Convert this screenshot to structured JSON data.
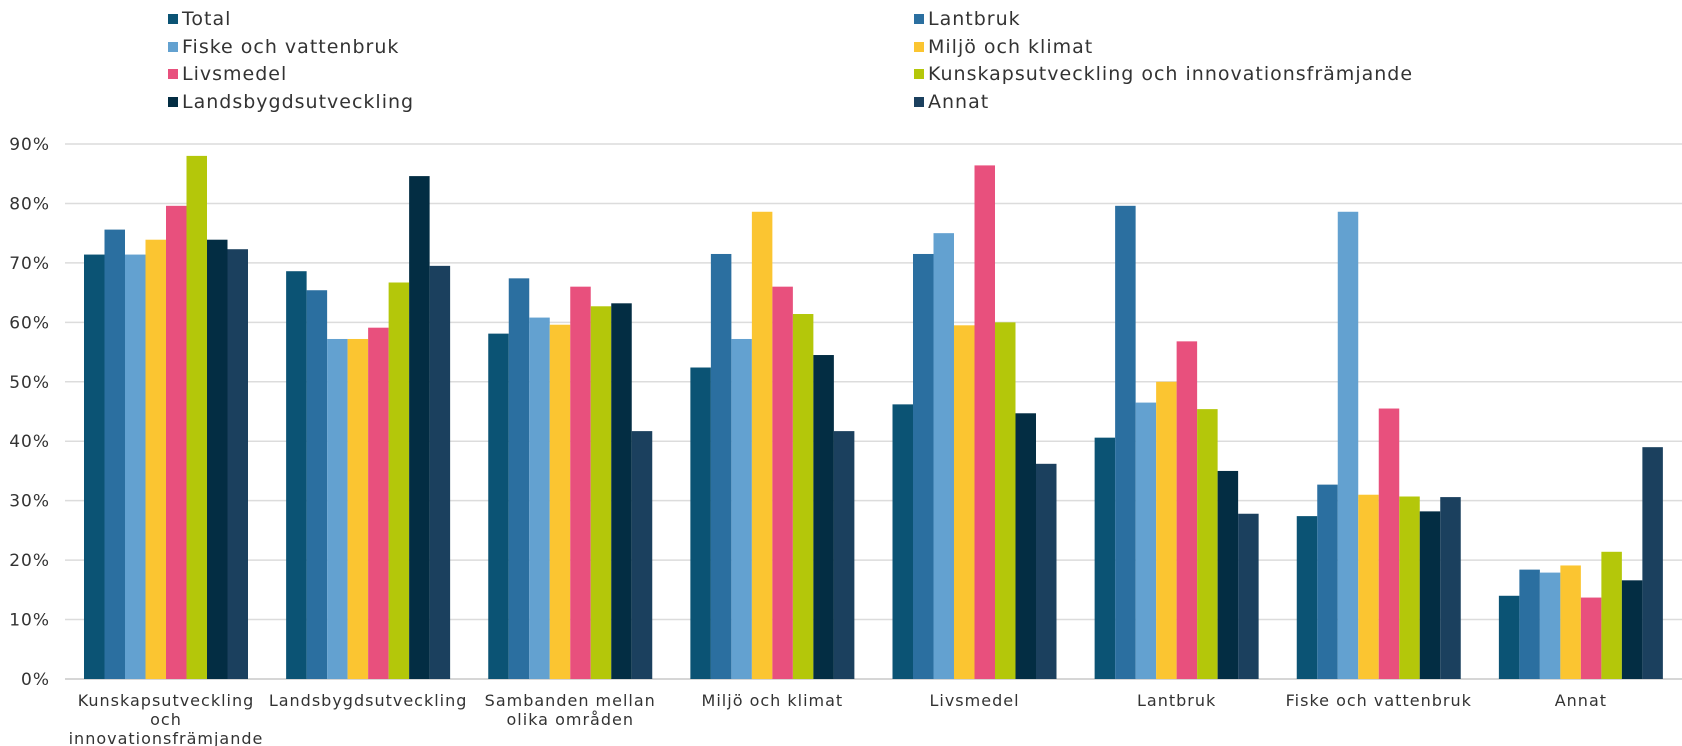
{
  "chart_data": {
    "type": "bar",
    "title": "",
    "xlabel": "",
    "ylabel": "",
    "ylim": [
      0,
      90
    ],
    "y_ticks": [
      "0%",
      "10%",
      "20%",
      "30%",
      "40%",
      "50%",
      "60%",
      "70%",
      "80%",
      "90%"
    ],
    "grid": true,
    "legend_position": "top",
    "categories": [
      [
        "Kunskapsutveckling",
        "och",
        "innovationsfrämjande"
      ],
      [
        "Landsbygdsutveckling"
      ],
      [
        "Sambanden mellan",
        "olika områden"
      ],
      [
        "Miljö och klimat"
      ],
      [
        "Livsmedel"
      ],
      [
        "Lantbruk"
      ],
      [
        "Fiske och vattenbruk"
      ],
      [
        "Annat"
      ]
    ],
    "series": [
      {
        "name": "Total",
        "color": "#0b5374",
        "values": [
          71.4,
          68.6,
          58.1,
          52.4,
          46.2,
          40.6,
          27.4,
          14.0
        ]
      },
      {
        "name": "Lantbruk",
        "color": "#2b6fa0",
        "values": [
          75.6,
          65.4,
          67.4,
          71.5,
          71.5,
          79.6,
          32.7,
          18.4
        ]
      },
      {
        "name": "Fiske och vattenbruk",
        "color": "#63a1d0",
        "values": [
          71.4,
          57.2,
          60.8,
          57.2,
          75.0,
          46.5,
          78.6,
          17.9
        ]
      },
      {
        "name": "Miljö och klimat",
        "color": "#fbc531",
        "values": [
          73.9,
          57.2,
          59.6,
          78.6,
          59.5,
          50.0,
          31.0,
          19.1
        ]
      },
      {
        "name": "Livsmedel",
        "color": "#e8507d",
        "values": [
          79.6,
          59.1,
          66.0,
          66.0,
          86.4,
          56.8,
          45.5,
          13.7
        ]
      },
      {
        "name": "Kunskapsutveckling och innovationsfrämjande",
        "color": "#b4c70a",
        "values": [
          88.0,
          66.7,
          62.7,
          61.4,
          60.0,
          45.4,
          30.7,
          21.4
        ]
      },
      {
        "name": "Landsbygdsutveckling",
        "color": "#032d43",
        "values": [
          73.9,
          84.6,
          63.2,
          54.5,
          44.7,
          35.0,
          28.2,
          16.6
        ]
      },
      {
        "name": "Annat",
        "color": "#1b405e",
        "values": [
          72.3,
          69.5,
          41.7,
          41.7,
          36.2,
          27.8,
          30.6,
          39.0
        ]
      }
    ]
  }
}
